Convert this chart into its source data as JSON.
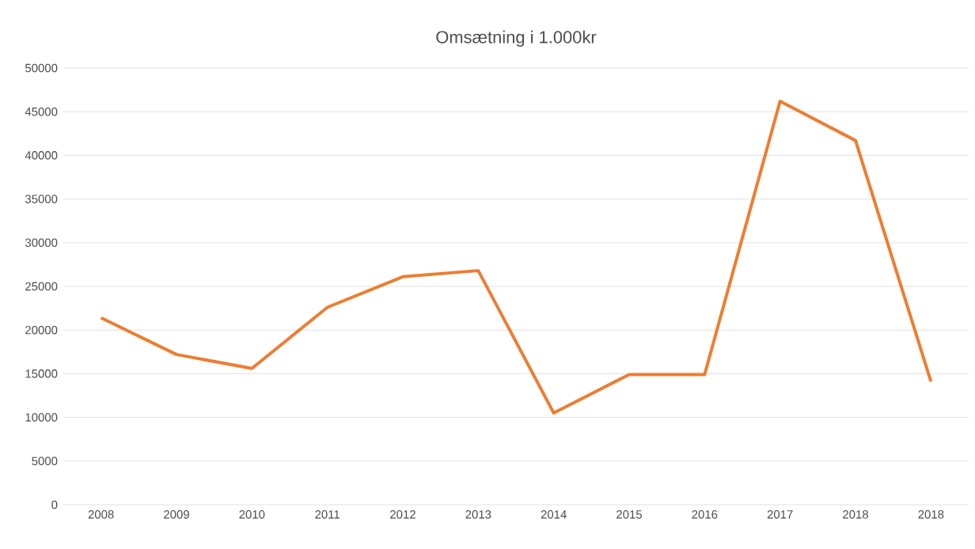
{
  "chart_data": {
    "type": "line",
    "title": "Omsætning i 1.000kr",
    "categories": [
      "2008",
      "2009",
      "2010",
      "2011",
      "2012",
      "2013",
      "2014",
      "2015",
      "2016",
      "2017",
      "2018",
      "2018"
    ],
    "values": [
      21400,
      17200,
      15600,
      22600,
      26100,
      26800,
      10500,
      14900,
      14900,
      46200,
      41700,
      14100
    ],
    "color": "#ed7d31",
    "ylim": [
      0,
      50000
    ],
    "yticks": [
      0,
      5000,
      10000,
      15000,
      20000,
      25000,
      30000,
      35000,
      40000,
      45000,
      50000
    ],
    "grid": "y",
    "marker": "none",
    "line_style": "solid"
  }
}
